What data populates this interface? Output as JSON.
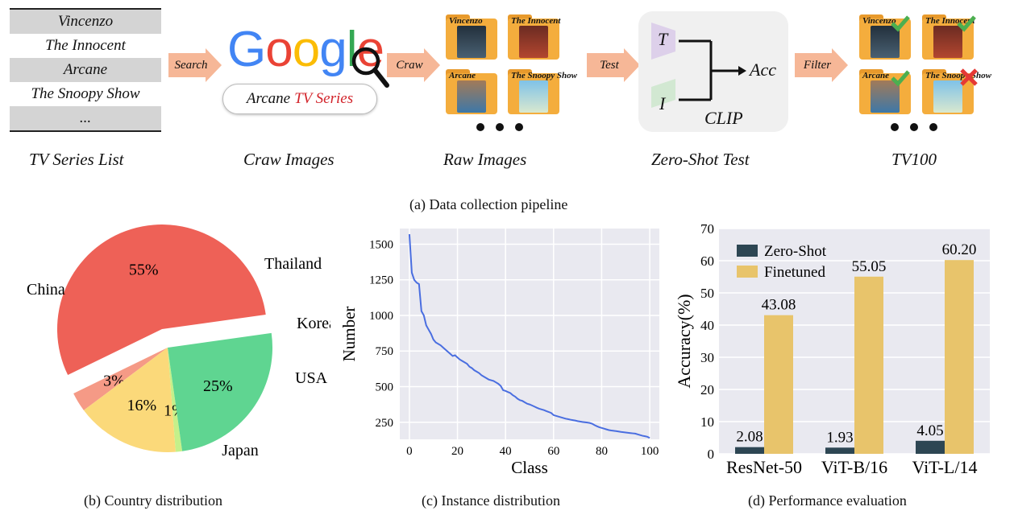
{
  "pipeline": {
    "tv_list": [
      "Vincenzo",
      "The Innocent",
      "Arcane",
      "The Snoopy Show",
      "..."
    ],
    "arrows": [
      "Search",
      "Craw",
      "Test",
      "Filter"
    ],
    "google_logo": "Google",
    "search_query": "Arcane",
    "search_query_red": "TV Series",
    "raw_images": [
      "Vincenzo",
      "The Innocent",
      "Arcane",
      "The Snoopy Show"
    ],
    "zero_shot": {
      "t": "T",
      "i": "I",
      "acc": "Acc",
      "clip": "CLIP"
    },
    "stage_labels": [
      "TV Series List",
      "Craw Images",
      "Raw Images",
      "Zero-Shot Test",
      "TV100"
    ],
    "filter_marks": [
      "check",
      "check",
      "check",
      "cross"
    ],
    "caption": "(a)  Data collection pipeline"
  },
  "captions": {
    "b": "(b)  Country distribution",
    "c": "(c)  Instance distribution",
    "d": "(d)  Performance evaluation"
  },
  "colors": {
    "china": "#ee6157",
    "thailand": "#f59a86",
    "korea": "#fbd97a",
    "usa": "#c5f08a",
    "japan": "#5fd591",
    "line": "#4a6ee0",
    "zero_shot": "#2d4653",
    "finetuned": "#e8c46b",
    "plot_bg": "#e9e9f0"
  },
  "chart_data": [
    {
      "type": "pie",
      "title": "",
      "slices": [
        {
          "label": "China",
          "value": 55,
          "pct_label": "55%",
          "exploded": true
        },
        {
          "label": "Thailand",
          "value": 3,
          "pct_label": "3%"
        },
        {
          "label": "Korea",
          "value": 16,
          "pct_label": "16%"
        },
        {
          "label": "USA",
          "value": 1,
          "pct_label": "1%"
        },
        {
          "label": "Japan",
          "value": 25,
          "pct_label": "25%"
        }
      ]
    },
    {
      "type": "line",
      "xlabel": "Class",
      "ylabel": "Number",
      "xlim": [
        0,
        100
      ],
      "ylim": [
        130,
        1610
      ],
      "xticks": [
        0,
        20,
        40,
        60,
        80,
        100
      ],
      "yticks": [
        250,
        500,
        750,
        1000,
        1250,
        1500
      ],
      "grid": true,
      "x": [
        0,
        1,
        2,
        3,
        4,
        5,
        6,
        7,
        8,
        9,
        10,
        11,
        12,
        13,
        14,
        15,
        16,
        17,
        18,
        19,
        20,
        21,
        22,
        23,
        24,
        25,
        26,
        27,
        28,
        29,
        30,
        31,
        32,
        33,
        34,
        35,
        36,
        37,
        38,
        39,
        40,
        41,
        42,
        43,
        44,
        45,
        46,
        47,
        48,
        49,
        50,
        51,
        52,
        53,
        54,
        55,
        56,
        57,
        58,
        59,
        60,
        61,
        62,
        63,
        64,
        65,
        66,
        67,
        68,
        69,
        70,
        71,
        72,
        73,
        74,
        75,
        76,
        77,
        78,
        79,
        80,
        81,
        82,
        83,
        84,
        85,
        86,
        87,
        88,
        89,
        90,
        91,
        92,
        93,
        94,
        95,
        96,
        97,
        98,
        99,
        100
      ],
      "y": [
        1570,
        1300,
        1250,
        1230,
        1220,
        1030,
        1000,
        930,
        900,
        870,
        830,
        810,
        800,
        790,
        775,
        760,
        745,
        730,
        715,
        720,
        705,
        690,
        680,
        670,
        660,
        640,
        630,
        615,
        605,
        595,
        580,
        570,
        560,
        550,
        545,
        540,
        530,
        520,
        505,
        475,
        470,
        462,
        455,
        440,
        430,
        415,
        405,
        400,
        390,
        380,
        375,
        368,
        360,
        352,
        345,
        340,
        335,
        328,
        322,
        315,
        300,
        295,
        290,
        285,
        280,
        275,
        272,
        268,
        265,
        262,
        258,
        255,
        252,
        250,
        248,
        245,
        240,
        230,
        222,
        215,
        210,
        205,
        200,
        195,
        192,
        190,
        188,
        185,
        182,
        180,
        178,
        176,
        174,
        172,
        170,
        165,
        160,
        155,
        152,
        148,
        140
      ]
    },
    {
      "type": "bar",
      "categories": [
        "ResNet-50",
        "ViT-B/16",
        "ViT-L/14"
      ],
      "series": [
        {
          "name": "Zero-Shot",
          "values": [
            2.08,
            1.93,
            4.05
          ]
        },
        {
          "name": "Finetuned",
          "values": [
            43.08,
            55.05,
            60.2
          ]
        }
      ],
      "value_labels": [
        [
          "2.08",
          "1.93",
          "4.05"
        ],
        [
          "43.08",
          "55.05",
          "60.20"
        ]
      ],
      "ylabel": "Accuracy(%)",
      "ylim": [
        0,
        70
      ],
      "yticks": [
        0,
        10,
        20,
        30,
        40,
        50,
        60,
        70
      ],
      "legend": "top-left",
      "grid": true
    }
  ]
}
